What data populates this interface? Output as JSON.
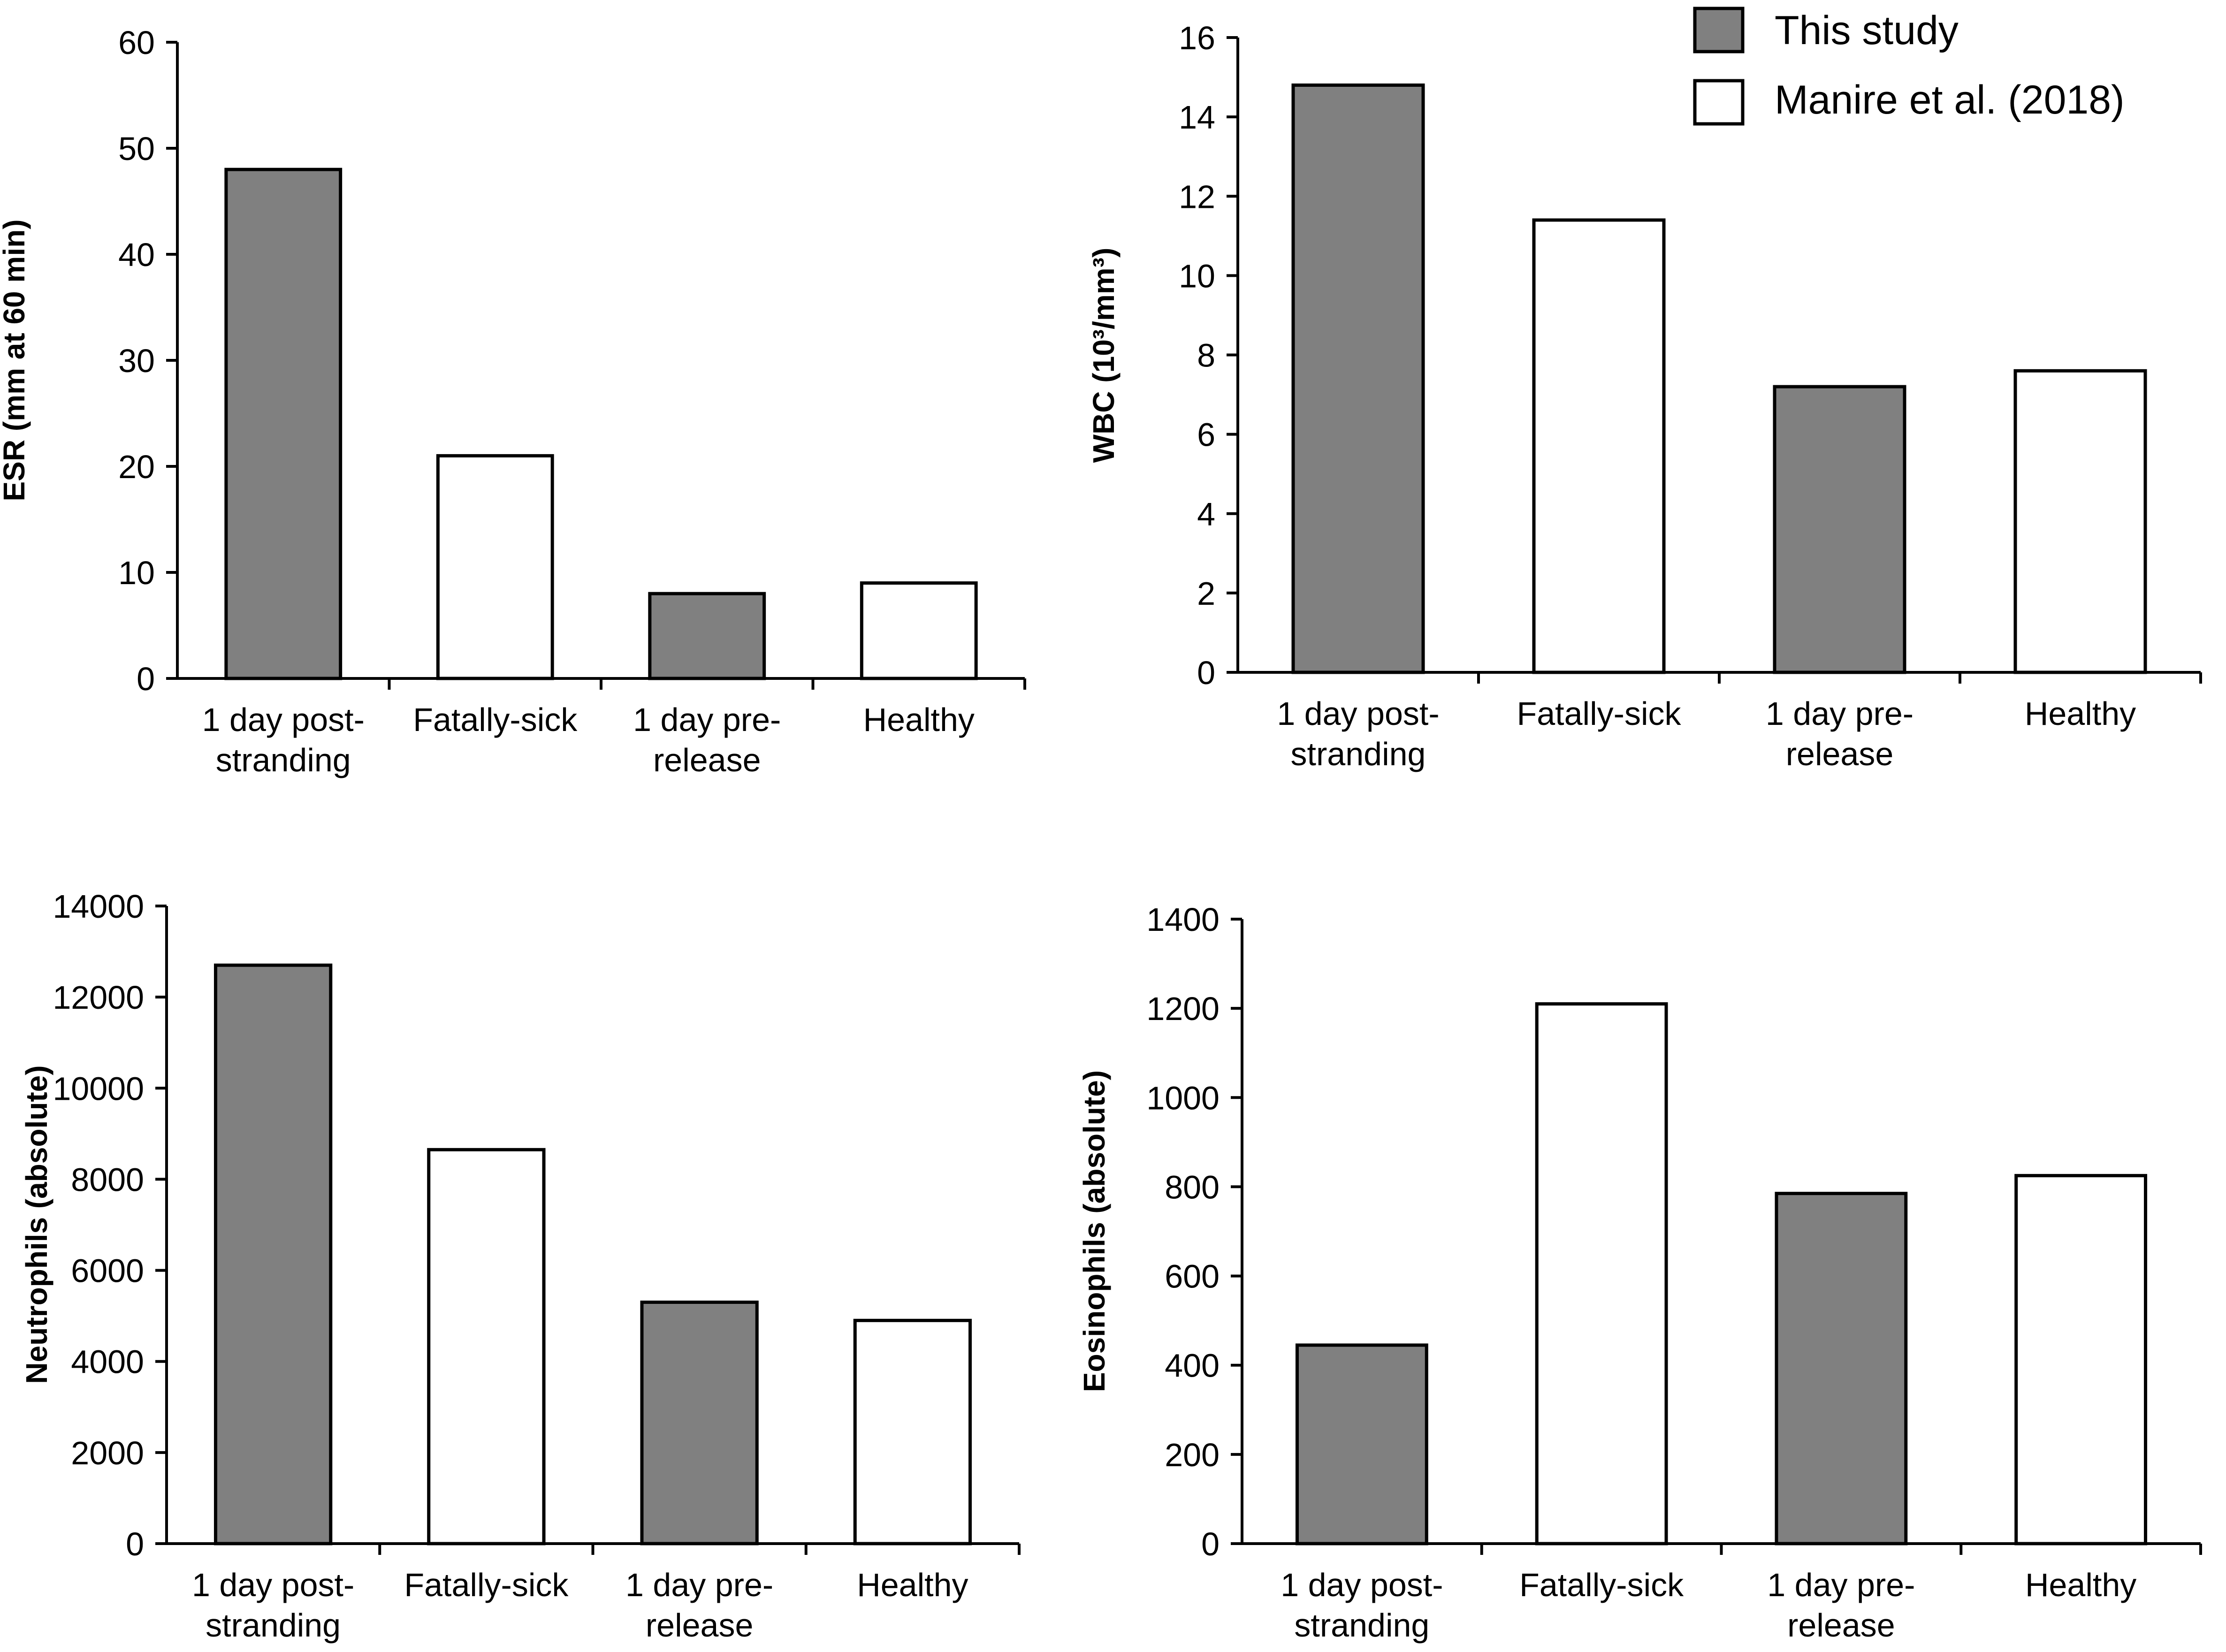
{
  "legend": {
    "entries": [
      {
        "label": "This study",
        "color": "#808080"
      },
      {
        "label": "Manire et al. (2018)",
        "color": "#ffffff"
      }
    ]
  },
  "chart_data": [
    {
      "type": "bar",
      "panel": "top-left",
      "categories": [
        [
          "1 day post-",
          "stranding"
        ],
        [
          "Fatally-sick"
        ],
        [
          "1 day pre-",
          "release"
        ],
        [
          "Healthy"
        ]
      ],
      "values": [
        48,
        21,
        8,
        9
      ],
      "series_of_bar": [
        "This study",
        "Manire et al. (2018)",
        "This study",
        "Manire et al. (2018)"
      ],
      "ylabel": "ESR (mm at 60 min)",
      "ylim": [
        0,
        60
      ],
      "yticks": [
        0,
        10,
        20,
        30,
        40,
        50,
        60
      ],
      "ytick_labels": [
        "0",
        "10",
        "20",
        "30",
        "40",
        "50",
        "60"
      ]
    },
    {
      "type": "bar",
      "panel": "top-right",
      "categories": [
        [
          "1 day post-",
          "stranding"
        ],
        [
          "Fatally-sick"
        ],
        [
          "1 day pre-",
          "release"
        ],
        [
          "Healthy"
        ]
      ],
      "values": [
        14.8,
        11.4,
        7.2,
        7.6
      ],
      "series_of_bar": [
        "This study",
        "Manire et al. (2018)",
        "This study",
        "Manire et al. (2018)"
      ],
      "ylabel": "WBC (10³/mm³)",
      "ylim": [
        0,
        16
      ],
      "yticks": [
        0,
        2,
        4,
        6,
        8,
        10,
        12,
        14,
        16
      ],
      "ytick_labels": [
        "0",
        "2",
        "4",
        "6",
        "8",
        "10",
        "12",
        "14",
        "16"
      ]
    },
    {
      "type": "bar",
      "panel": "bottom-left",
      "categories": [
        [
          "1 day post-",
          "stranding"
        ],
        [
          "Fatally-sick"
        ],
        [
          "1 day pre-",
          "release"
        ],
        [
          "Healthy"
        ]
      ],
      "values": [
        12700,
        8650,
        5300,
        4900
      ],
      "series_of_bar": [
        "This study",
        "Manire et al. (2018)",
        "This study",
        "Manire et al. (2018)"
      ],
      "ylabel": "Neutrophils (absolute)",
      "ylim": [
        0,
        14000
      ],
      "yticks": [
        0,
        2000,
        4000,
        6000,
        8000,
        10000,
        12000,
        14000
      ],
      "ytick_labels": [
        "0",
        "2000",
        "4000",
        "6000",
        "8000",
        "10000",
        "12000",
        "14000"
      ]
    },
    {
      "type": "bar",
      "panel": "bottom-right",
      "categories": [
        [
          "1 day post-",
          "stranding"
        ],
        [
          "Fatally-sick"
        ],
        [
          "1 day pre-",
          "release"
        ],
        [
          "Healthy"
        ]
      ],
      "values": [
        445,
        1210,
        785,
        825
      ],
      "series_of_bar": [
        "This study",
        "Manire et al. (2018)",
        "This study",
        "Manire et al. (2018)"
      ],
      "ylabel": "Eosinophils (absolute)",
      "ylim": [
        0,
        1400
      ],
      "yticks": [
        0,
        200,
        400,
        600,
        800,
        1000,
        1200,
        1400
      ],
      "ytick_labels": [
        "0",
        "200",
        "400",
        "600",
        "800",
        "1000",
        "1200",
        "1400"
      ]
    }
  ]
}
